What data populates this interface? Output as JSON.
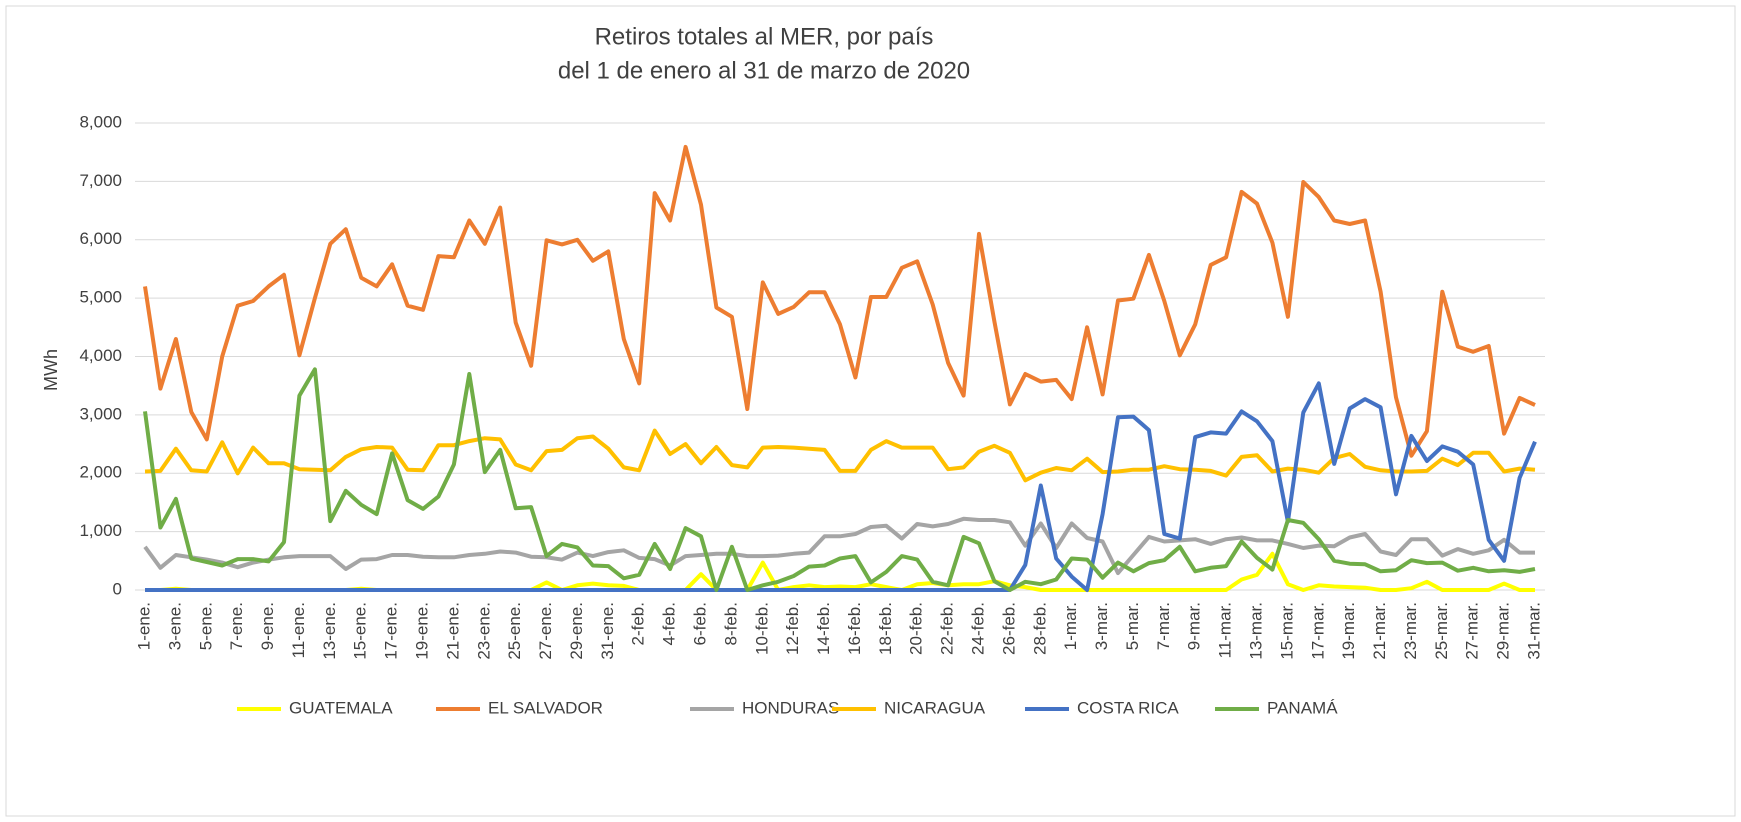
{
  "chart_data": {
    "type": "line",
    "title": "Retiros totales al MER, por país",
    "subtitle": "del 1 de enero al 31 de marzo de 2020",
    "y_label": "MWh",
    "categories": [
      "1-ene.",
      null,
      "3-ene.",
      null,
      "5-ene.",
      null,
      "7-ene.",
      null,
      "9-ene.",
      null,
      "11-ene.",
      null,
      "13-ene.",
      null,
      "15-ene.",
      null,
      "17-ene.",
      null,
      "19-ene.",
      null,
      "21-ene.",
      null,
      "23-ene.",
      null,
      "25-ene.",
      null,
      "27-ene.",
      null,
      "29-ene.",
      null,
      "31-ene.",
      null,
      "2-feb.",
      null,
      "4-feb.",
      null,
      "6-feb.",
      null,
      "8-feb.",
      null,
      "10-feb.",
      null,
      "12-feb.",
      null,
      "14-feb.",
      null,
      "16-feb.",
      null,
      "18-feb.",
      null,
      "20-feb.",
      null,
      "22-feb.",
      null,
      "24-feb.",
      null,
      "26-feb.",
      null,
      "28-feb.",
      null,
      "1-mar.",
      null,
      "3-mar.",
      null,
      "5-mar.",
      null,
      "7-mar.",
      null,
      "9-mar.",
      null,
      "11-mar.",
      null,
      "13-mar.",
      null,
      "15-mar.",
      null,
      "17-mar.",
      null,
      "19-mar.",
      null,
      "21-mar.",
      null,
      "23-mar.",
      null,
      "25-mar.",
      null,
      "27-mar.",
      null,
      "29-mar.",
      null,
      "31-mar."
    ],
    "ylim": [
      0,
      8000
    ],
    "yticks": [
      0,
      {
        "value": 1000,
        "label": "1,000"
      },
      {
        "value": 2000,
        "label": "2,000"
      },
      {
        "value": 3000,
        "label": "3,000"
      },
      {
        "value": 4000,
        "label": "4,000"
      },
      {
        "value": 5000,
        "label": "5,000"
      },
      {
        "value": 6000,
        "label": "6,000"
      },
      {
        "value": 7000,
        "label": "7,000"
      },
      {
        "value": 8000,
        "label": "8,000"
      }
    ],
    "grid": true,
    "legend": "bottom",
    "series": [
      {
        "name": "GUATEMALA",
        "color": "#ffff00",
        "values": [
          0,
          0,
          20,
          0,
          0,
          0,
          0,
          0,
          0,
          0,
          0,
          0,
          0,
          0,
          20,
          0,
          0,
          0,
          0,
          0,
          0,
          0,
          0,
          0,
          0,
          0,
          130,
          0,
          80,
          110,
          80,
          70,
          0,
          0,
          0,
          0,
          270,
          0,
          0,
          0,
          470,
          0,
          50,
          80,
          50,
          60,
          50,
          100,
          50,
          0,
          100,
          120,
          80,
          100,
          100,
          150,
          80,
          50,
          0,
          0,
          0,
          0,
          0,
          0,
          0,
          0,
          0,
          0,
          0,
          0,
          0,
          180,
          260,
          620,
          100,
          0,
          80,
          60,
          50,
          40,
          0,
          0,
          30,
          140,
          0,
          0,
          0,
          0,
          110,
          0,
          0
        ]
      },
      {
        "name": "EL SALVADOR",
        "color": "#ed7d31",
        "values": [
          5200,
          3450,
          4300,
          3050,
          2580,
          4000,
          4870,
          4950,
          5200,
          5400,
          4020,
          5000,
          5930,
          6180,
          5350,
          5200,
          5580,
          4870,
          4800,
          5720,
          5700,
          6330,
          5930,
          6550,
          4580,
          3840,
          5990,
          5920,
          6000,
          5640,
          5800,
          4300,
          3540,
          6800,
          6330,
          7590,
          6600,
          4840,
          4680,
          3100,
          5270,
          4730,
          4850,
          5100,
          5100,
          4550,
          3640,
          5020,
          5020,
          5520,
          5630,
          4890,
          3890,
          3330,
          6100,
          4600,
          3180,
          3700,
          3570,
          3600,
          3270,
          4500,
          3350,
          4960,
          4990,
          5740,
          4950,
          4020,
          4550,
          5570,
          5700,
          6820,
          6620,
          5950,
          4680,
          6990,
          6730,
          6330,
          6270,
          6330,
          5110,
          3300,
          2300,
          2720,
          5110,
          4170,
          4080,
          4180,
          2680,
          3290,
          3170
        ]
      },
      {
        "name": "HONDURAS",
        "color": "#a5a5a5",
        "values": [
          740,
          380,
          600,
          560,
          520,
          470,
          390,
          470,
          520,
          560,
          580,
          580,
          580,
          360,
          520,
          530,
          600,
          600,
          570,
          560,
          560,
          600,
          620,
          660,
          640,
          570,
          560,
          520,
          640,
          580,
          650,
          680,
          550,
          530,
          420,
          580,
          600,
          620,
          620,
          580,
          580,
          590,
          620,
          640,
          920,
          920,
          960,
          1080,
          1100,
          880,
          1130,
          1090,
          1130,
          1220,
          1200,
          1200,
          1160,
          760,
          1140,
          720,
          1140,
          890,
          830,
          290,
          600,
          910,
          830,
          850,
          870,
          790,
          870,
          900,
          850,
          850,
          790,
          720,
          760,
          750,
          900,
          960,
          660,
          600,
          870,
          870,
          590,
          700,
          620,
          680,
          860,
          640,
          640
        ]
      },
      {
        "name": "NICARAGUA",
        "color": "#ffc000",
        "values": [
          2030,
          2040,
          2420,
          2050,
          2030,
          2530,
          2000,
          2440,
          2170,
          2170,
          2070,
          2060,
          2050,
          2280,
          2410,
          2450,
          2440,
          2060,
          2050,
          2480,
          2480,
          2550,
          2600,
          2580,
          2150,
          2050,
          2380,
          2400,
          2600,
          2630,
          2420,
          2100,
          2050,
          2730,
          2330,
          2500,
          2170,
          2450,
          2140,
          2100,
          2440,
          2450,
          2440,
          2420,
          2400,
          2040,
          2040,
          2400,
          2550,
          2440,
          2440,
          2440,
          2070,
          2100,
          2370,
          2470,
          2350,
          1880,
          2010,
          2090,
          2050,
          2250,
          2020,
          2030,
          2060,
          2060,
          2120,
          2070,
          2060,
          2040,
          1960,
          2280,
          2310,
          2030,
          2080,
          2060,
          2010,
          2260,
          2330,
          2110,
          2050,
          2030,
          2030,
          2040,
          2250,
          2140,
          2350,
          2350,
          2030,
          2080,
          2060
        ]
      },
      {
        "name": "COSTA RICA",
        "color": "#4472c4",
        "values": [
          0,
          0,
          0,
          0,
          0,
          0,
          0,
          0,
          0,
          0,
          0,
          0,
          0,
          0,
          0,
          0,
          0,
          0,
          0,
          0,
          0,
          0,
          0,
          0,
          0,
          0,
          0,
          0,
          0,
          0,
          0,
          0,
          0,
          0,
          0,
          0,
          0,
          0,
          0,
          0,
          0,
          0,
          0,
          0,
          0,
          0,
          0,
          0,
          0,
          0,
          0,
          0,
          0,
          0,
          0,
          0,
          0,
          430,
          1790,
          540,
          230,
          0,
          1300,
          2960,
          2970,
          2740,
          960,
          880,
          2620,
          2700,
          2680,
          3060,
          2890,
          2550,
          1170,
          3040,
          3540,
          2160,
          3110,
          3270,
          3130,
          1640,
          2640,
          2210,
          2460,
          2370,
          2150,
          860,
          500,
          1920,
          2540
        ]
      },
      {
        "name": "PANAMÁ",
        "color": "#70ad47",
        "values": [
          3060,
          1070,
          1560,
          540,
          480,
          420,
          530,
          530,
          490,
          820,
          3330,
          3780,
          1180,
          1700,
          1460,
          1300,
          2340,
          1540,
          1390,
          1600,
          2150,
          3700,
          2020,
          2400,
          1400,
          1420,
          580,
          790,
          730,
          420,
          410,
          200,
          260,
          790,
          360,
          1060,
          920,
          0,
          740,
          0,
          80,
          140,
          240,
          400,
          420,
          540,
          580,
          130,
          310,
          580,
          520,
          140,
          80,
          910,
          800,
          150,
          0,
          140,
          100,
          180,
          540,
          520,
          210,
          470,
          320,
          460,
          510,
          740,
          320,
          380,
          410,
          830,
          550,
          350,
          1200,
          1150,
          870,
          500,
          450,
          440,
          320,
          340,
          510,
          460,
          470,
          330,
          380,
          320,
          340,
          310,
          360
        ]
      }
    ]
  }
}
